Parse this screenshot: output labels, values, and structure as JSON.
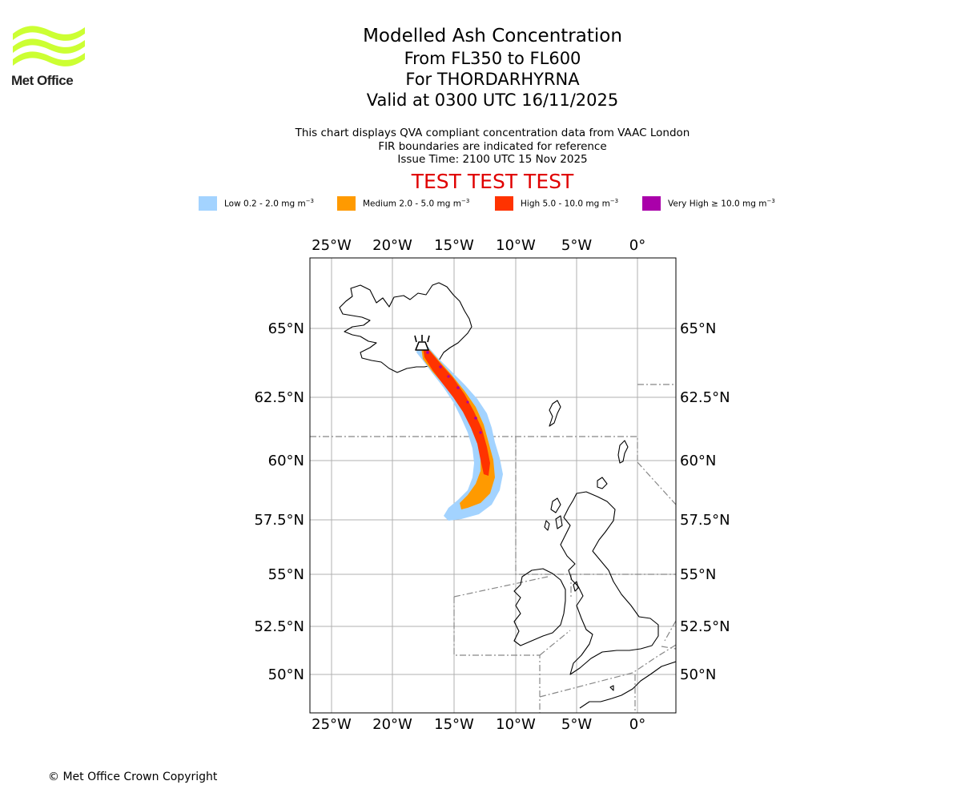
{
  "org": {
    "logo_text": "Met Office",
    "logo_color": "#ccff33"
  },
  "title": {
    "line1": "Modelled Ash Concentration",
    "line2": "From FL350 to FL600",
    "line3": "For THORDARHYRNA",
    "line4": "Valid at 0300 UTC 16/11/2025"
  },
  "subtitle": {
    "line1": "This chart displays QVA compliant concentration data from VAAC London",
    "line2": "FIR boundaries are indicated for reference",
    "line3": "Issue Time: 2100 UTC 15 Nov 2025"
  },
  "test_banner": "TEST TEST TEST",
  "legend": [
    {
      "label": "Low 0.2 - 2.0 mg m",
      "exp": "−3",
      "color": "#a3d3ff"
    },
    {
      "label": "Medium 2.0 - 5.0 mg m",
      "exp": "−3",
      "color": "#ff9a00"
    },
    {
      "label": "High 5.0 - 10.0 mg m",
      "exp": "−3",
      "color": "#ff3300"
    },
    {
      "label": "Very High  ≥  10.0 mg m",
      "exp": "−3",
      "color": "#aa00aa"
    }
  ],
  "map": {
    "lon_ticks": [
      "25°W",
      "20°W",
      "15°W",
      "10°W",
      "5°W",
      "0°"
    ],
    "lat_ticks": [
      "65°N",
      "62.5°N",
      "60°N",
      "57.5°N",
      "55°N",
      "52.5°N",
      "50°N"
    ],
    "volcano": "THORDARHYRNA",
    "grid_color": "#b0b0b0",
    "fir_color": "#888888"
  },
  "copyright": "© Met Office Crown Copyright"
}
